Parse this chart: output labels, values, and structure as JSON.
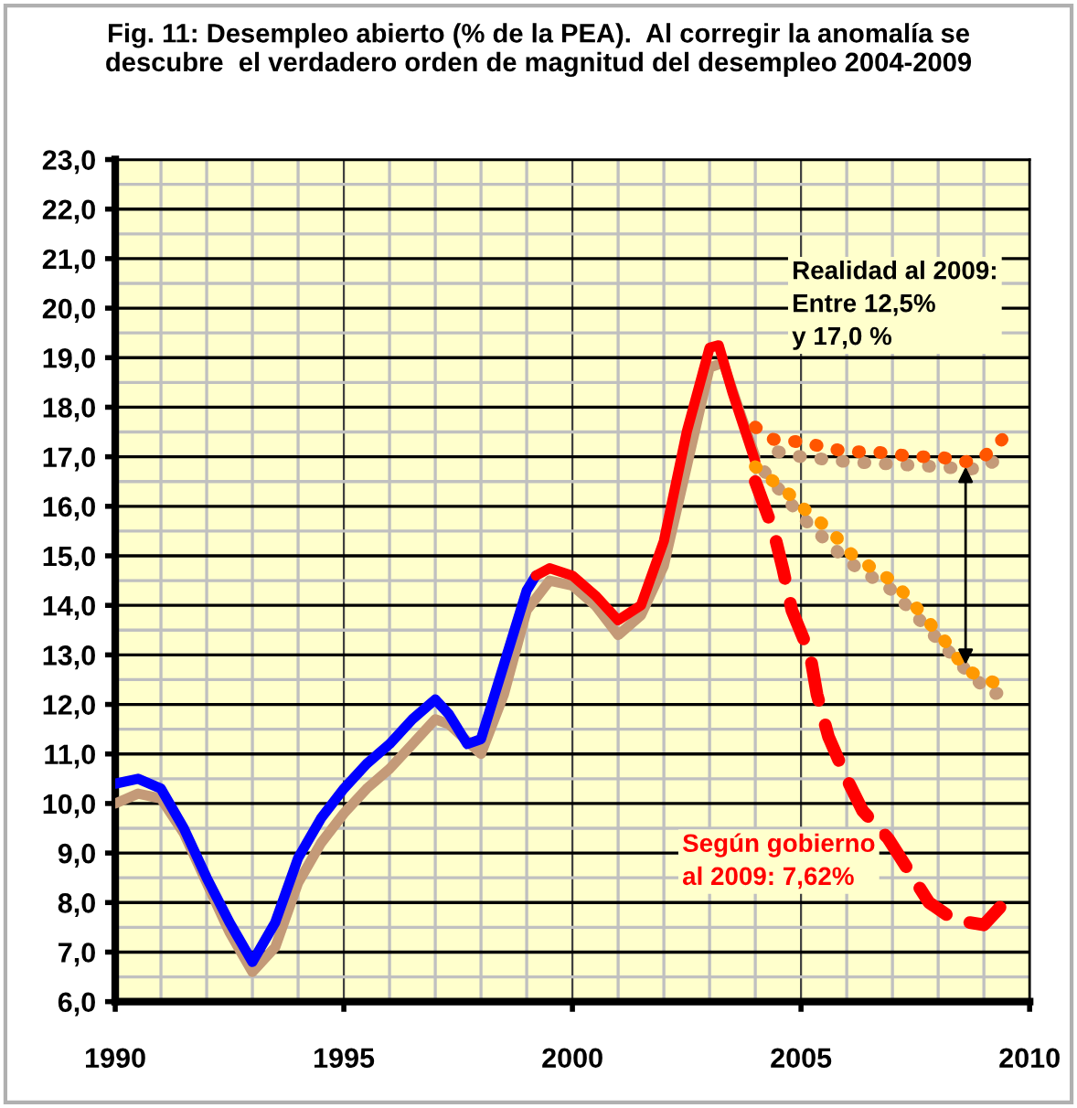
{
  "chart_data": {
    "type": "line",
    "title": "Fig. 11: Desempleo abierto (% de la PEA).  Al corregir la anomalía se\ndescubre  el verdadero orden de magnitud del desempleo 2004-2009",
    "series": [
      {
        "color": "#c49a78",
        "line_style": "solid",
        "x": [
          1990,
          1990.5,
          1991,
          1991.5,
          1992,
          1992.5,
          1993,
          1993.5,
          1994,
          1994.5,
          1995,
          1995.5,
          1996,
          1996.5,
          1997,
          1997.3,
          1998,
          1998.5,
          1999,
          1999.5,
          2000,
          2000.5,
          2001,
          2001.5,
          2002,
          2002.5,
          2003,
          2003.3,
          2003.7,
          2004
        ],
        "values": [
          10.0,
          10.2,
          10.1,
          9.4,
          8.4,
          7.4,
          6.6,
          7.1,
          8.4,
          9.2,
          9.8,
          10.3,
          10.7,
          11.2,
          11.7,
          11.6,
          11.0,
          12.2,
          13.9,
          14.5,
          14.4,
          14.0,
          13.4,
          13.8,
          14.8,
          16.8,
          18.8,
          18.9,
          17.8,
          17.0
        ]
      },
      {
        "color": "#c49a78",
        "line_style": "dotted",
        "x": [
          2004.5,
          2005,
          2006,
          2007,
          2008,
          2008.7,
          2009,
          2009.5
        ],
        "values": [
          17.1,
          17.0,
          16.9,
          16.85,
          16.8,
          16.75,
          16.8,
          17.05
        ]
      },
      {
        "color": "#c49a78",
        "line_style": "dotted",
        "x": [
          2004.2,
          2005,
          2006,
          2007,
          2008,
          2008.7,
          2009.2,
          2009.5
        ],
        "values": [
          16.7,
          15.8,
          14.9,
          14.3,
          13.3,
          12.6,
          12.2,
          12.3
        ]
      },
      {
        "color": "#0000ff",
        "line_style": "solid",
        "x": [
          1990,
          1990.5,
          1991,
          1991.5,
          1992,
          1992.5,
          1993,
          1993.5,
          1994,
          1994.5,
          1995,
          1995.5,
          1996,
          1996.5,
          1997,
          1997.3,
          1997.7,
          1998,
          1998.5,
          1999,
          1999.2
        ],
        "values": [
          10.4,
          10.5,
          10.3,
          9.5,
          8.5,
          7.6,
          6.8,
          7.6,
          8.9,
          9.7,
          10.3,
          10.8,
          11.2,
          11.7,
          12.1,
          11.8,
          11.2,
          11.3,
          12.8,
          14.3,
          14.6
        ]
      },
      {
        "color": "#ff0000",
        "line_style": "solid",
        "x": [
          1999.2,
          1999.5,
          2000,
          2000.5,
          2001,
          2001.5,
          2002,
          2002.5,
          2003,
          2003.2,
          2003.5,
          2004
        ],
        "values": [
          14.6,
          14.75,
          14.6,
          14.2,
          13.7,
          14.0,
          15.3,
          17.5,
          19.2,
          19.25,
          18.3,
          16.9
        ]
      },
      {
        "color": "#ff5500",
        "line_style": "dotted",
        "x": [
          2004.0,
          2004.4,
          2004.96,
          2005.5,
          2006.0,
          2006.6,
          2007.5,
          2008.0,
          2008.6,
          2009.0,
          2009.4
        ],
        "values": [
          17.6,
          17.35,
          17.3,
          17.2,
          17.1,
          17.1,
          17.0,
          17.0,
          16.9,
          17.0,
          17.35
        ]
      },
      {
        "color": "#ff9900",
        "line_style": "dotted",
        "x": [
          2004.0,
          2004.4,
          2004.8,
          2005.0,
          2005.4,
          2005.8,
          2006.0,
          2006.4,
          2006.8,
          2007.0,
          2007.4,
          2007.7,
          2008.0,
          2008.3,
          2008.6,
          2009.2,
          2009.45
        ],
        "values": [
          16.8,
          16.5,
          16.2,
          16.0,
          15.7,
          15.35,
          15.1,
          14.85,
          14.6,
          14.5,
          14.1,
          13.75,
          13.45,
          13.1,
          12.7,
          12.45,
          12.5
        ]
      },
      {
        "color": "#ff0000",
        "line_style": "dashed",
        "x": [
          2004.0,
          2004.4,
          2004.6,
          2004.8,
          2005.2,
          2005.35,
          2005.6,
          2006.0,
          2006.35,
          2006.9,
          2007.35,
          2007.8,
          2008.35,
          2009.0,
          2009.45
        ],
        "values": [
          16.5,
          15.5,
          14.75,
          13.9,
          13.0,
          12.2,
          11.35,
          10.5,
          9.85,
          9.3,
          8.65,
          8.0,
          7.65,
          7.55,
          8.0
        ]
      }
    ],
    "annotations": [
      "Realidad al 2009:\nEntre 12,5%\ny 17,0 %",
      "Según gobierno\nal 2009: 7,62%"
    ],
    "xlim": [
      1990,
      2010
    ],
    "xticks": [
      1990,
      1995,
      2000,
      2005,
      2010
    ],
    "ylim": [
      6,
      23
    ],
    "yticks": [
      {
        "value": 6,
        "label": "6,0"
      },
      {
        "value": 7,
        "label": "7,0"
      },
      {
        "value": 8,
        "label": "8,0"
      },
      {
        "value": 9,
        "label": "9,0"
      },
      {
        "value": 10,
        "label": "10,0"
      },
      {
        "value": 11,
        "label": "11,0"
      },
      {
        "value": 12,
        "label": "12,0"
      },
      {
        "value": 13,
        "label": "13,0"
      },
      {
        "value": 14,
        "label": "14,0"
      },
      {
        "value": 15,
        "label": "15,0"
      },
      {
        "value": 16,
        "label": "16,0"
      },
      {
        "value": 17,
        "label": "17,0"
      },
      {
        "value": 18,
        "label": "18,0"
      },
      {
        "value": 19,
        "label": "19,0"
      },
      {
        "value": 20,
        "label": "20,0"
      },
      {
        "value": 21,
        "label": "21,0"
      },
      {
        "value": 22,
        "label": "22,0"
      },
      {
        "value": 23,
        "label": "23,0"
      }
    ],
    "grid": true
  }
}
